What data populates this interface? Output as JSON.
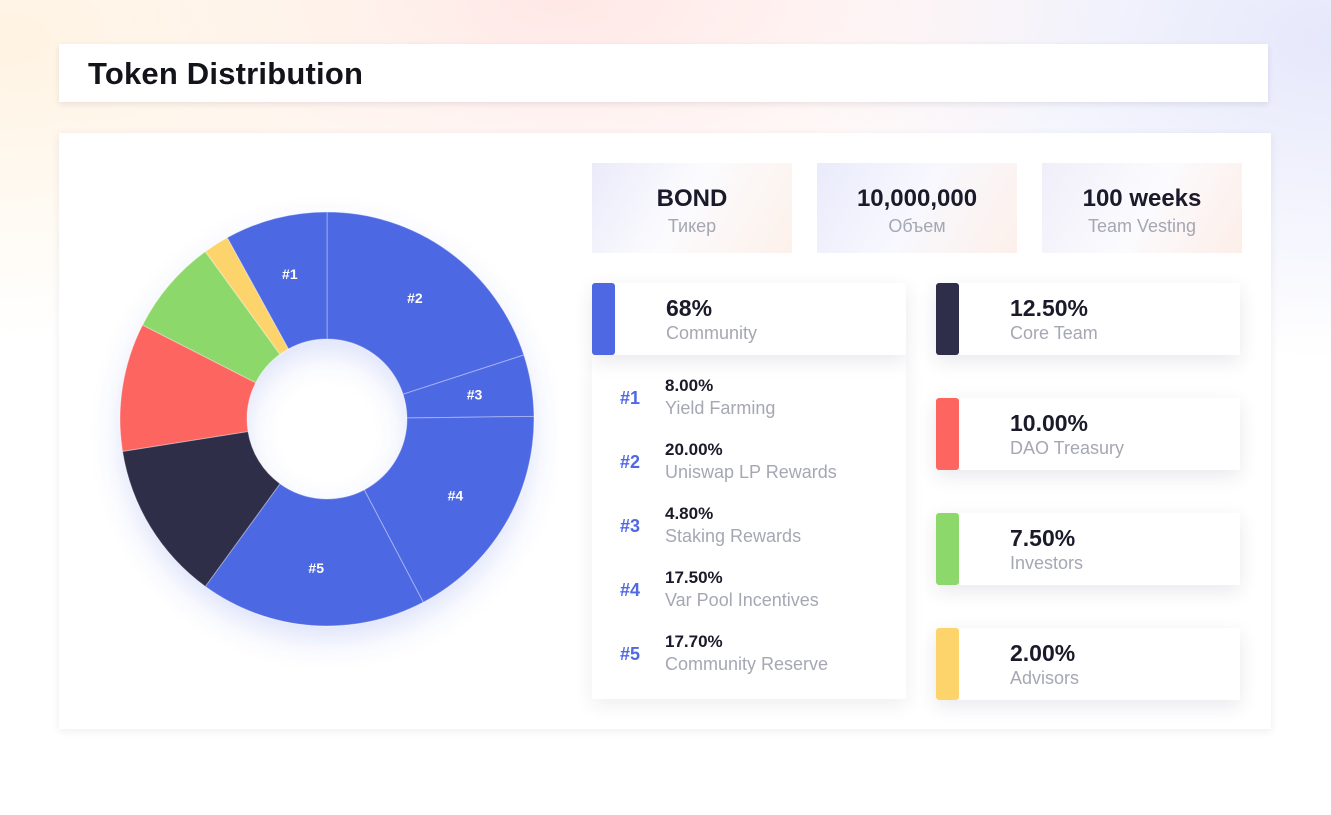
{
  "title": "Token Distribution",
  "stats": [
    {
      "value": "BOND",
      "label": "Тикер"
    },
    {
      "value": "10,000,000",
      "label": "Объем"
    },
    {
      "value": "100 weeks",
      "label": "Team Vesting"
    }
  ],
  "community": {
    "pct": "68%",
    "name": "Community",
    "color": "#4e68e3"
  },
  "community_items": [
    {
      "num": "#1",
      "pct": "8.00%",
      "name": "Yield Farming"
    },
    {
      "num": "#2",
      "pct": "20.00%",
      "name": "Uniswap LP Rewards"
    },
    {
      "num": "#3",
      "pct": "4.80%",
      "name": "Staking Rewards"
    },
    {
      "num": "#4",
      "pct": "17.50%",
      "name": "Var Pool Incentives"
    },
    {
      "num": "#5",
      "pct": "17.70%",
      "name": "Community Reserve"
    }
  ],
  "allocations": [
    {
      "pct": "12.50%",
      "name": "Core Team",
      "color": "#2e2d4a"
    },
    {
      "pct": "10.00%",
      "name": "DAO Treasury",
      "color": "#fd6560"
    },
    {
      "pct": "7.50%",
      "name": "Investors",
      "color": "#8dd86a"
    },
    {
      "pct": "2.00%",
      "name": "Advisors",
      "color": "#fdd46c"
    }
  ],
  "chart_data": {
    "type": "pie",
    "title": "Token Distribution",
    "donut": true,
    "start_angle_deg": 0,
    "direction": "clockwise",
    "slices": [
      {
        "label": "#2",
        "name": "Uniswap LP Rewards",
        "value": 20.0,
        "color": "#4e68e3"
      },
      {
        "label": "#3",
        "name": "Staking Rewards",
        "value": 4.8,
        "color": "#4e68e3"
      },
      {
        "label": "#4",
        "name": "Var Pool Incentives",
        "value": 17.5,
        "color": "#4e68e3"
      },
      {
        "label": "#5",
        "name": "Community Reserve",
        "value": 17.7,
        "color": "#4e68e3"
      },
      {
        "label": "",
        "name": "Core Team",
        "value": 12.5,
        "color": "#2e2d4a"
      },
      {
        "label": "",
        "name": "DAO Treasury",
        "value": 10.0,
        "color": "#fd6560"
      },
      {
        "label": "",
        "name": "Investors",
        "value": 7.5,
        "color": "#8dd86a"
      },
      {
        "label": "",
        "name": "Advisors",
        "value": 2.0,
        "color": "#fdd46c"
      },
      {
        "label": "#1",
        "name": "Yield Farming",
        "value": 8.0,
        "color": "#4e68e3"
      }
    ]
  }
}
